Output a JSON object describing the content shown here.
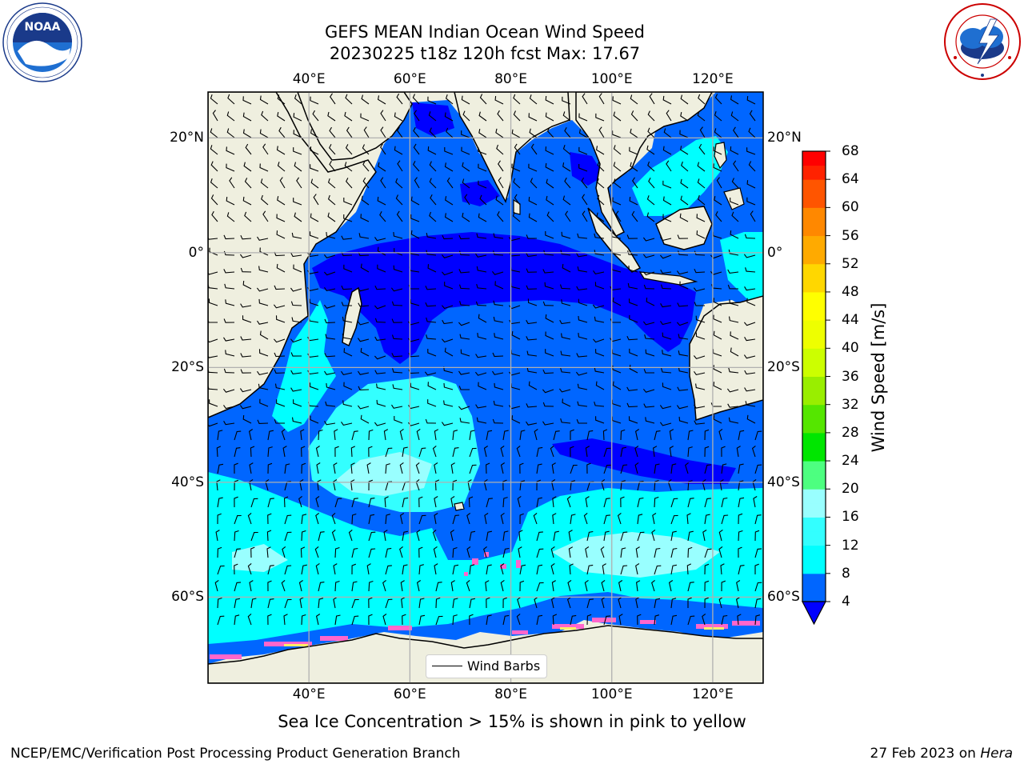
{
  "title_line1": "GEFS MEAN Indian Ocean Wind Speed",
  "title_line2": "20230225 t18z 120h fcst   Max: 17.67",
  "lon_labels": [
    "40°E",
    "60°E",
    "80°E",
    "100°E",
    "120°E"
  ],
  "lat_labels": [
    "20°N",
    "0°",
    "20°S",
    "40°S",
    "60°S"
  ],
  "map_extent": {
    "lon_min": 20,
    "lon_max": 130,
    "lat_min": -75,
    "lat_max": 28
  },
  "grid_lons": [
    40,
    60,
    80,
    100,
    120
  ],
  "grid_lats": [
    20,
    0,
    -20,
    -40,
    -60
  ],
  "colorbar": {
    "title": "Wind Speed [m/s]",
    "tick_labels": [
      "4",
      "8",
      "12",
      "16",
      "20",
      "24",
      "28",
      "32",
      "36",
      "40",
      "44",
      "48",
      "52",
      "56",
      "60",
      "64",
      "68"
    ],
    "levels": [
      4,
      6,
      8,
      10,
      12,
      14,
      16,
      18,
      20,
      22,
      24,
      26,
      28,
      30,
      32,
      34,
      36,
      38,
      40,
      42,
      44,
      46,
      48,
      50,
      52,
      54,
      56,
      58,
      60,
      62,
      64,
      66,
      68
    ],
    "colors": [
      "#0066ff",
      "#0066ff",
      "#00ffff",
      "#00ffff",
      "#33ffff",
      "#33ffff",
      "#99ffff",
      "#99ffff",
      "#4dff80",
      "#4dff80",
      "#00e600",
      "#00e600",
      "#55e600",
      "#55e600",
      "#99ee00",
      "#99ee00",
      "#ccff00",
      "#ccff00",
      "#eeff00",
      "#eeff00",
      "#ffff00",
      "#ffff00",
      "#ffd700",
      "#ffd700",
      "#ffaa00",
      "#ffaa00",
      "#ff8800",
      "#ff8800",
      "#ff5500",
      "#ff5500",
      "#ff2200",
      "#ff0000"
    ],
    "under_color": "#0000ff"
  },
  "colors": {
    "land": "#efefdf",
    "ocean_dark": "#0000ff",
    "ocean_blue": "#0066ff",
    "ocean_cyan": "#00ffff",
    "ocean_light": "#99ffff",
    "sea_ice": "#ff66cc",
    "grid": "#b0b0b0"
  },
  "legend_label": "Wind Barbs",
  "caption": "Sea Ice Concentration > 15% is shown in pink to yellow",
  "footer_left": "NCEP/EMC/Verification Post Processing Product Generation Branch",
  "footer_right_date": "27 Feb 2023 on",
  "footer_right_host": "Hera",
  "logo_left": "noaa-logo",
  "logo_right": "nws-logo"
}
